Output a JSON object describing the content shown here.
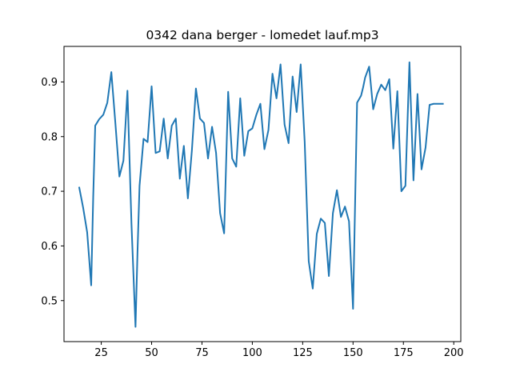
{
  "chart_data": {
    "type": "line",
    "title": "0342 dana berger - lomedet lauf.mp3",
    "xlabel": "",
    "ylabel": "",
    "xlim": [
      6.5,
      203.5
    ],
    "ylim": [
      0.425,
      0.965
    ],
    "x_ticks": [
      25,
      50,
      75,
      100,
      125,
      150,
      175,
      200
    ],
    "y_ticks": [
      0.5,
      0.6,
      0.7,
      0.8,
      0.9
    ],
    "y_tick_labels": [
      "0.5",
      "0.6",
      "0.7",
      "0.8",
      "0.9"
    ],
    "grid": false,
    "line_color": "#1f77b4",
    "series": [
      {
        "x": [
          14,
          16,
          18,
          20,
          21,
          22,
          24,
          26,
          28,
          30,
          32,
          34,
          36,
          38,
          40,
          42,
          43,
          44,
          46,
          48,
          50,
          52,
          54,
          56,
          58,
          60,
          62,
          64,
          66,
          68,
          70,
          72,
          74,
          76,
          78,
          80,
          82,
          84,
          86,
          88,
          90,
          92,
          94,
          96,
          98,
          100,
          102,
          104,
          106,
          108,
          110,
          112,
          114,
          116,
          118,
          120,
          122,
          124,
          126,
          128,
          130,
          132,
          134,
          136,
          138,
          140,
          142,
          144,
          146,
          148,
          150,
          152,
          154,
          155,
          156,
          158,
          160,
          162,
          164,
          166,
          168,
          170,
          172,
          174,
          176,
          178,
          180,
          182,
          184,
          186,
          188,
          190,
          192,
          194,
          195
        ],
        "values": [
          0.708,
          0.67,
          0.625,
          0.528,
          0.69,
          0.82,
          0.832,
          0.84,
          0.862,
          0.918,
          0.825,
          0.727,
          0.756,
          0.884,
          0.64,
          0.452,
          0.59,
          0.71,
          0.796,
          0.79,
          0.892,
          0.77,
          0.773,
          0.833,
          0.76,
          0.82,
          0.833,
          0.723,
          0.783,
          0.687,
          0.775,
          0.888,
          0.833,
          0.825,
          0.76,
          0.818,
          0.77,
          0.66,
          0.623,
          0.882,
          0.76,
          0.745,
          0.87,
          0.765,
          0.81,
          0.815,
          0.84,
          0.86,
          0.777,
          0.812,
          0.915,
          0.87,
          0.932,
          0.822,
          0.788,
          0.91,
          0.845,
          0.932,
          0.79,
          0.572,
          0.522,
          0.622,
          0.65,
          0.642,
          0.545,
          0.66,
          0.702,
          0.653,
          0.672,
          0.645,
          0.485,
          0.862,
          0.875,
          0.89,
          0.908,
          0.928,
          0.85,
          0.878,
          0.895,
          0.885,
          0.905,
          0.778,
          0.883,
          0.7,
          0.71,
          0.936,
          0.72,
          0.878,
          0.74,
          0.78,
          0.858,
          0.86,
          0.86,
          0.86,
          0.86
        ]
      }
    ]
  }
}
